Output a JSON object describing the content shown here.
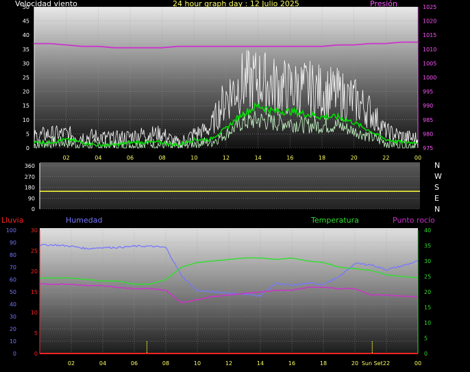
{
  "wind_panel": {
    "title": "Velocidad viento",
    "header": "24 hour graph day : 12 Julio 2025",
    "right_title": "Presión",
    "colors": {
      "gust": "#ffffff",
      "avg": "#00dd00",
      "speed": "#ccffcc",
      "pressure": "#cc33cc",
      "left_axis": "#ffffff",
      "right_axis": "#ff55ff",
      "time": "#ffff66"
    }
  },
  "dir_panel": {
    "compass": [
      "N",
      "W",
      "S",
      "E",
      "N"
    ],
    "colors": {
      "line": "#ffff33",
      "axis": "#ffffff"
    }
  },
  "temp_panel": {
    "label_rain": "Lluvia",
    "label_humidity": "Humedad",
    "label_temperature": "Temperatura",
    "label_dew": "Punto rocío",
    "sun_label": "Sun Set",
    "colors": {
      "rain": "#ff2222",
      "humidity": "#7777ff",
      "temperature": "#33dd33",
      "dew": "#cc33cc",
      "sun": "#ffff33"
    }
  },
  "chart_data": [
    {
      "type": "line",
      "title": "Velocidad viento",
      "x_ticks": [
        "02",
        "04",
        "06",
        "08",
        "10",
        "12",
        "14",
        "16",
        "18",
        "20",
        "22",
        "00"
      ],
      "y_ticks": [
        0,
        5,
        10,
        15,
        20,
        25,
        30,
        35,
        40,
        45,
        50
      ],
      "ylim": [
        0,
        50
      ],
      "y2_title": "Presión",
      "y2_ticks": [
        975,
        980,
        985,
        990,
        995,
        1000,
        1005,
        1010,
        1015,
        1020,
        1025
      ],
      "y2lim": [
        975,
        1025
      ],
      "x_hours": [
        0,
        1,
        2,
        3,
        4,
        5,
        6,
        7,
        8,
        9,
        10,
        11,
        12,
        13,
        14,
        15,
        16,
        17,
        18,
        19,
        20,
        21,
        22,
        23,
        24
      ],
      "series": [
        {
          "values": [
            4,
            5,
            5,
            4,
            4,
            3,
            4,
            5,
            5,
            1,
            5,
            7,
            18,
            23,
            24,
            22,
            21,
            21,
            20,
            19,
            17,
            13,
            6,
            4,
            3
          ]
        },
        {
          "values": [
            2,
            2,
            3,
            2,
            1,
            1,
            2,
            2,
            2,
            1,
            3,
            3,
            7,
            12,
            15,
            13,
            13,
            12,
            11,
            11,
            9,
            6,
            3,
            2,
            2
          ]
        },
        {
          "values": [
            1,
            2,
            2,
            1,
            1,
            1,
            1,
            2,
            1,
            0,
            2,
            2,
            5,
            9,
            10,
            9,
            9,
            8,
            8,
            8,
            6,
            4,
            2,
            1,
            1
          ]
        },
        {
          "values": [
            1012,
            1012,
            1011.5,
            1011,
            1011,
            1010.5,
            1010.5,
            1010.5,
            1010.5,
            1011,
            1011,
            1011,
            1011,
            1011,
            1011,
            1011,
            1011,
            1011,
            1011,
            1011.5,
            1011.5,
            1012,
            1012,
            1012.5,
            1012.5
          ]
        }
      ]
    },
    {
      "type": "line",
      "y_ticks": [
        0,
        90,
        180,
        270,
        360
      ],
      "ylim": [
        0,
        360
      ],
      "series": [
        {
          "x": [
            0,
            24
          ],
          "values": [
            147,
            147
          ]
        }
      ]
    },
    {
      "type": "line",
      "x_ticks": [
        "02",
        "04",
        "06",
        "08",
        "10",
        "12",
        "14",
        "16",
        "18",
        "20",
        "Sun Set",
        "22",
        "00"
      ],
      "y_ticks_left": [
        0,
        10,
        20,
        30,
        40,
        50,
        60,
        70,
        80,
        90,
        100
      ],
      "y_ticks_rain": [
        0,
        5,
        10,
        15,
        20,
        25,
        30
      ],
      "y_ticks_right": [
        0,
        5,
        10,
        15,
        20,
        25,
        30,
        35,
        40
      ],
      "ylim_left": [
        0,
        100
      ],
      "ylim_rain": [
        0,
        30
      ],
      "ylim_right": [
        0,
        40
      ],
      "x_hours": [
        0,
        1,
        2,
        3,
        4,
        5,
        6,
        7,
        8,
        9,
        10,
        11,
        12,
        13,
        14,
        15,
        16,
        17,
        18,
        19,
        20,
        21,
        22,
        23,
        24
      ],
      "series": [
        {
          "name": "Humedad",
          "axis": "left",
          "values": [
            88,
            88,
            87,
            85,
            86,
            86,
            87,
            87,
            86,
            63,
            51,
            50,
            49,
            48,
            47,
            57,
            55,
            57,
            56,
            62,
            73,
            72,
            68,
            71,
            75
          ]
        },
        {
          "name": "Temperatura",
          "axis": "right",
          "values": [
            24.5,
            24.5,
            24.5,
            24,
            23.5,
            23.5,
            22.5,
            22.5,
            24,
            28,
            29.5,
            30,
            30.5,
            31,
            31,
            30.5,
            31,
            30,
            29.5,
            28,
            27.5,
            27,
            25.5,
            25,
            24.5
          ]
        },
        {
          "name": "Punto rocío",
          "axis": "right",
          "values": [
            22.5,
            22.5,
            22.5,
            22,
            22,
            21.5,
            21,
            21,
            20.5,
            16.5,
            17.5,
            18.5,
            19,
            19.5,
            20,
            20.5,
            20.5,
            21.5,
            21.5,
            21,
            21,
            19,
            19,
            18.5,
            18.5
          ]
        },
        {
          "name": "Lluvia",
          "axis": "rain",
          "values": [
            0,
            0,
            0,
            0,
            0,
            0,
            0,
            0,
            0,
            0,
            0,
            0,
            0,
            0,
            0,
            0,
            0,
            0,
            0,
            0,
            0,
            0,
            0,
            0,
            0
          ]
        }
      ],
      "markers": [
        6.8,
        21.1
      ]
    }
  ]
}
